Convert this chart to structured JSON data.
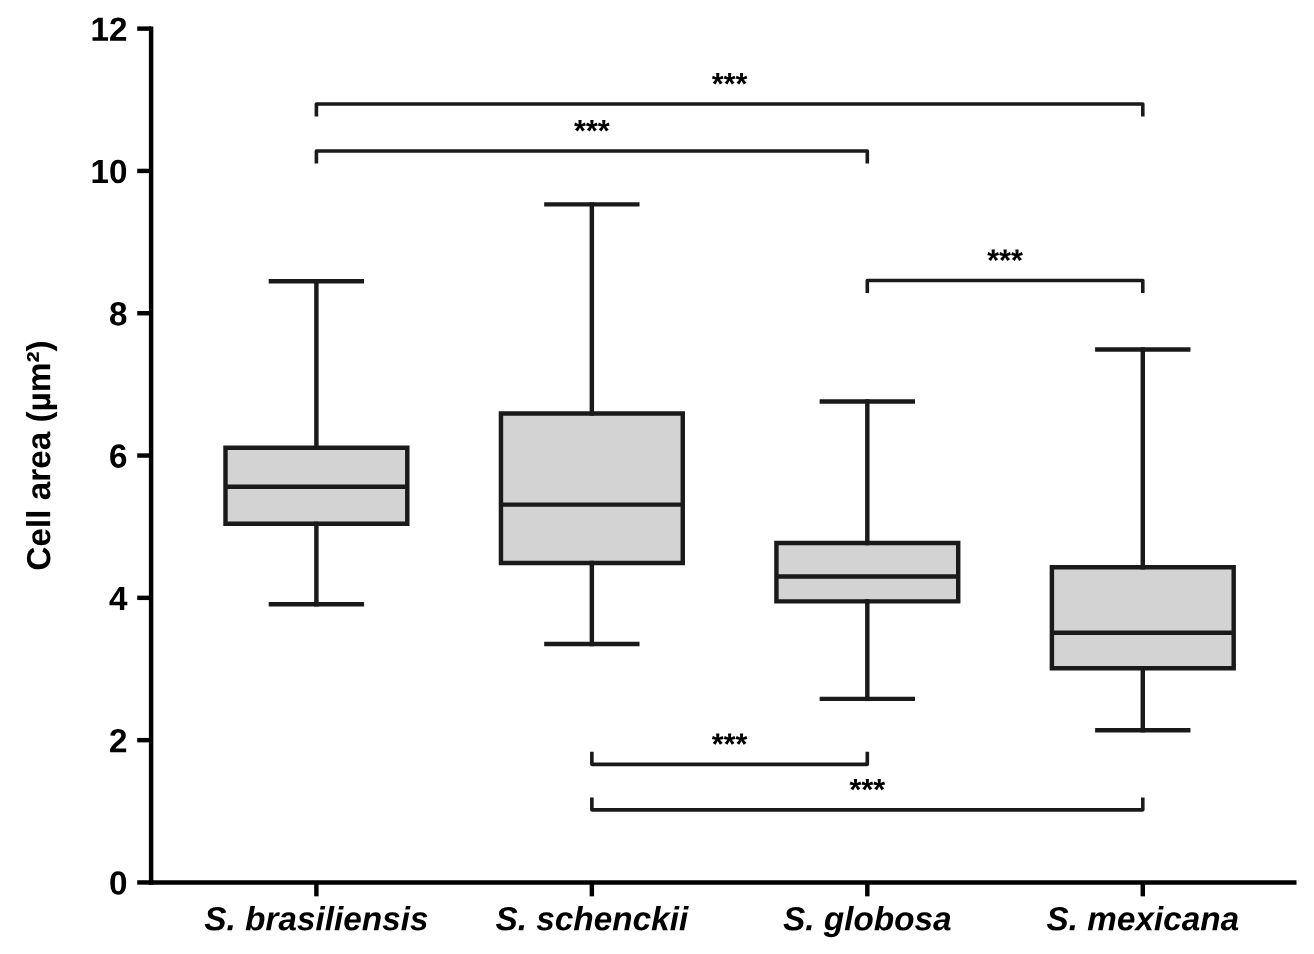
{
  "chart_data": {
    "type": "box",
    "ylabel": "Cell area (µm²)",
    "categories": [
      "S. brasiliensis",
      "S. schenckii",
      "S. globosa",
      "S. mexicana"
    ],
    "boxes": [
      {
        "low": 3.91,
        "q1": 5.04,
        "median": 5.56,
        "q3": 6.11,
        "high": 8.45
      },
      {
        "low": 3.35,
        "q1": 4.49,
        "median": 5.31,
        "q3": 6.59,
        "high": 9.53
      },
      {
        "low": 2.58,
        "q1": 3.95,
        "median": 4.3,
        "q3": 4.77,
        "high": 6.76
      },
      {
        "low": 2.14,
        "q1": 3.01,
        "median": 3.51,
        "q3": 4.43,
        "high": 7.49
      }
    ],
    "color": "#d3d3d3",
    "ylim": [
      0,
      12
    ],
    "yticks": [
      0,
      2,
      4,
      6,
      8,
      10,
      12
    ],
    "grid": false,
    "annotations": [
      "***",
      "***",
      "***",
      "***",
      "***"
    ]
  }
}
